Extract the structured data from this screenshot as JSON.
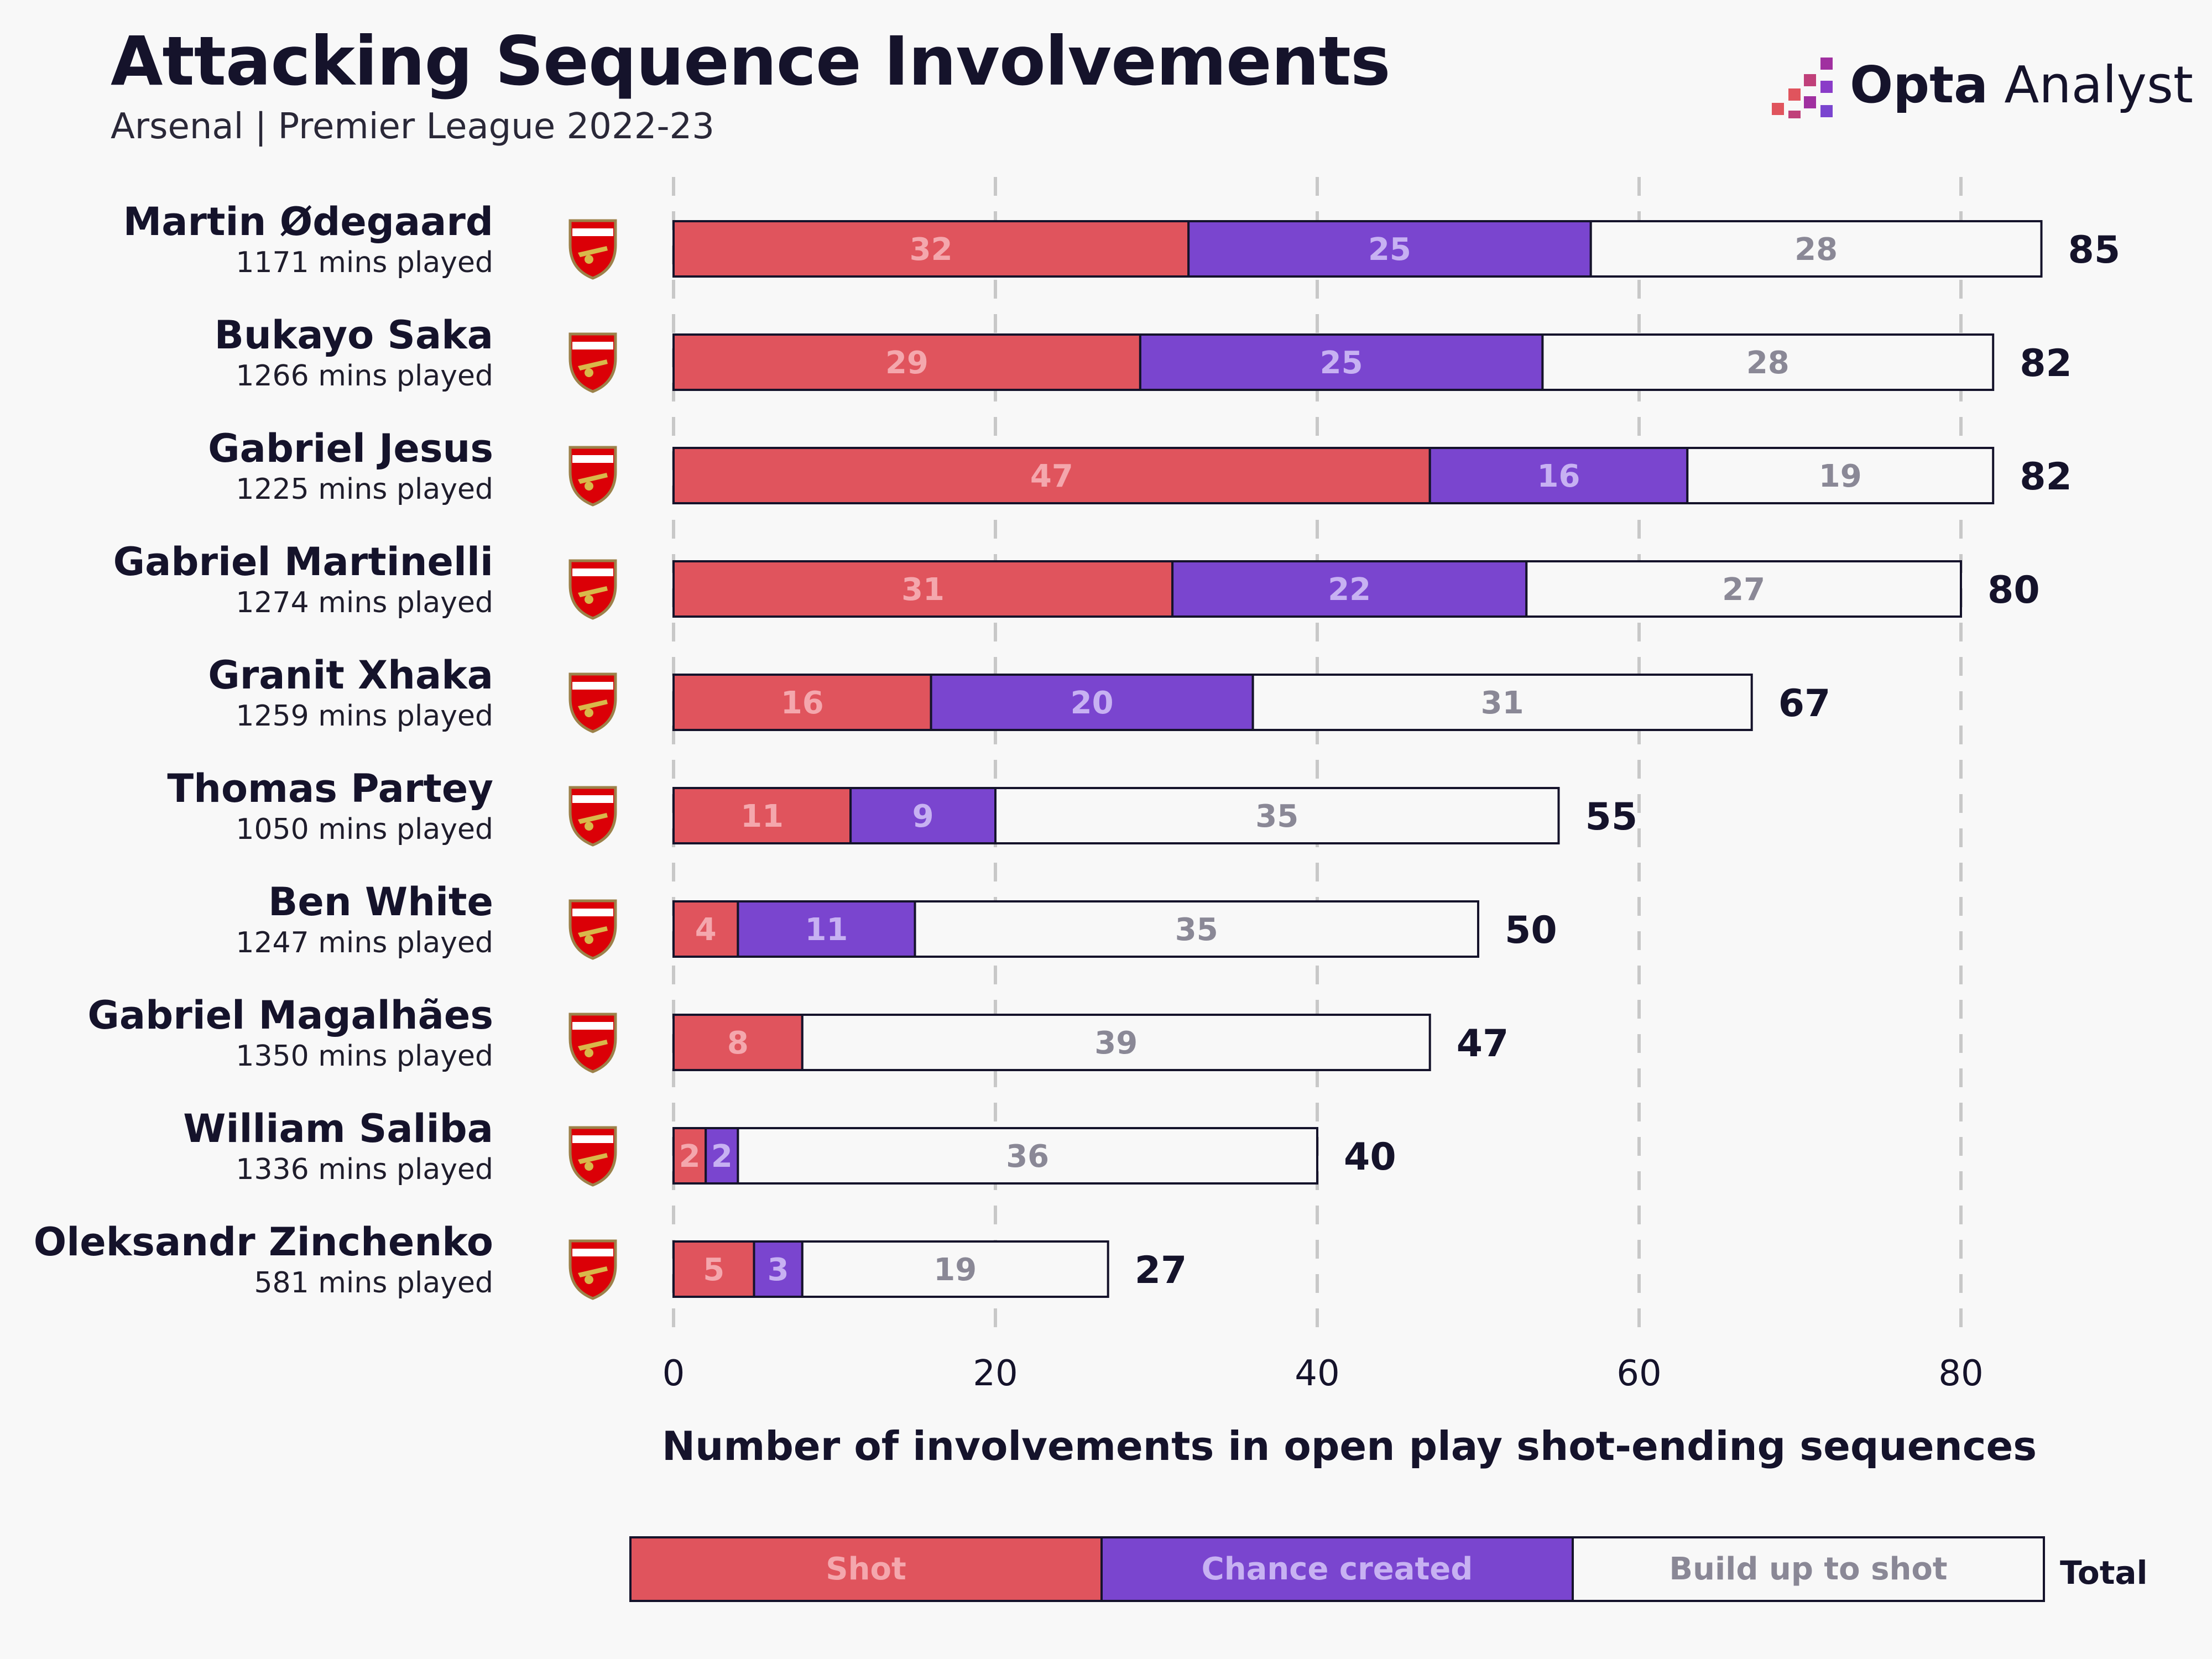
{
  "header": {
    "title": "Attacking Sequence Involvements",
    "subtitle": "Arsenal | Premier League 2022-23"
  },
  "brand": {
    "name_bold": "Opta",
    "name_light": " Analyst"
  },
  "colors": {
    "shot": "#e0545d",
    "chance_created": "#7a45cf",
    "build_up": "#f8f8f8",
    "grid": "#c8c8c8",
    "text": "#15132b"
  },
  "legend": {
    "total_label": "Total"
  },
  "chart_data": {
    "type": "bar",
    "orientation": "horizontal",
    "stacked": true,
    "xlabel": "Number of involvements in open play shot-ending sequences",
    "xlim": [
      0,
      85
    ],
    "xticks": [
      0,
      20,
      40,
      60,
      80
    ],
    "grid": true,
    "legend_position": "bottom",
    "categories": [
      "Martin Ødegaard",
      "Bukayo Saka",
      "Gabriel Jesus",
      "Gabriel Martinelli",
      "Granit Xhaka",
      "Thomas Partey",
      "Ben White",
      "Gabriel Magalhães",
      "William Saliba",
      "Oleksandr Zinchenko"
    ],
    "minutes_labels": [
      "1171 mins played",
      "1266 mins played",
      "1225 mins played",
      "1274 mins played",
      "1259 mins played",
      "1050 mins played",
      "1247 mins played",
      "1350 mins played",
      "1336 mins played",
      "581 mins played"
    ],
    "series": [
      {
        "name": "Shot",
        "values": [
          32,
          29,
          47,
          31,
          16,
          11,
          4,
          8,
          2,
          5
        ]
      },
      {
        "name": "Chance created",
        "values": [
          25,
          25,
          16,
          22,
          20,
          9,
          11,
          0,
          2,
          3
        ]
      },
      {
        "name": "Build up to shot",
        "values": [
          28,
          28,
          19,
          27,
          31,
          35,
          35,
          39,
          36,
          19
        ]
      }
    ],
    "totals": [
      85,
      82,
      82,
      80,
      67,
      55,
      50,
      47,
      40,
      27
    ]
  }
}
